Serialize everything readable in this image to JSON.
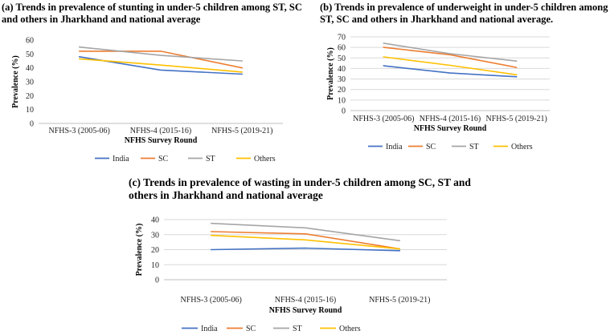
{
  "chart_data": [
    {
      "id": "a",
      "type": "line",
      "title": "(a) Trends in prevalence of stunting in under-5 children among ST, SC and others in Jharkhand and national average",
      "categories": [
        "NFHS-3 (2005-06)",
        "NFHS-4 (2015-16)",
        "NFHS-5 (2019-21)"
      ],
      "xlabel": "NFHS Survey Round",
      "ylabel": "Prevalence (%)",
      "ylim": [
        0,
        60
      ],
      "yticks": [
        0,
        10,
        20,
        30,
        40,
        50,
        60
      ],
      "grid": false,
      "legend": "bottom",
      "series": [
        {
          "name": "India",
          "color": "#4472C4",
          "values": [
            48,
            38.4,
            35.5
          ]
        },
        {
          "name": "SC",
          "color": "#ED7D31",
          "values": [
            52,
            52,
            40
          ]
        },
        {
          "name": "ST",
          "color": "#A5A5A5",
          "values": [
            55,
            49,
            45
          ]
        },
        {
          "name": "Others",
          "color": "#FFC000",
          "values": [
            46.5,
            42,
            37
          ]
        }
      ]
    },
    {
      "id": "b",
      "type": "line",
      "title": "(b) Trends in prevalence of underweight in under-5 children among ST, SC and others in Jharkhand and national average.",
      "categories": [
        "NFHS-3 (2005-06)",
        "NFHS-4 (2015-16)",
        "NFHS-5 (2019-21)"
      ],
      "xlabel": "NFHS Survey Round",
      "ylabel": "Prevalence (%)",
      "ylim": [
        0,
        70
      ],
      "yticks": [
        0,
        10,
        20,
        30,
        40,
        50,
        60,
        70
      ],
      "grid": true,
      "legend": "bottom",
      "series": [
        {
          "name": "India",
          "color": "#4472C4",
          "values": [
            42.5,
            35.7,
            32.1
          ]
        },
        {
          "name": "SC",
          "color": "#ED7D31",
          "values": [
            60,
            53,
            41
          ]
        },
        {
          "name": "ST",
          "color": "#A5A5A5",
          "values": [
            64,
            54,
            47
          ]
        },
        {
          "name": "Others",
          "color": "#FFC000",
          "values": [
            51,
            43,
            34
          ]
        }
      ]
    },
    {
      "id": "c",
      "type": "line",
      "title": "(c) Trends in prevalence of wasting in under-5 children among SC, ST and others in Jharkhand and national average",
      "categories": [
        "NFHS-3 (2005-06)",
        "NFHS-4 (2015-16)",
        "NFHS-5 (2019-21)"
      ],
      "xlabel": "NFHS Survey Round",
      "ylabel": "Prevalence (%)",
      "ylim": [
        0,
        40
      ],
      "yticks": [
        0,
        10,
        20,
        30,
        40
      ],
      "grid": true,
      "legend": "bottom",
      "series": [
        {
          "name": "India",
          "color": "#4472C4",
          "values": [
            20,
            21,
            19.3
          ]
        },
        {
          "name": "SC",
          "color": "#ED7D31",
          "values": [
            32,
            30.5,
            20.5
          ]
        },
        {
          "name": "ST",
          "color": "#A5A5A5",
          "values": [
            37.5,
            34.5,
            26
          ]
        },
        {
          "name": "Others",
          "color": "#FFC000",
          "values": [
            29.5,
            26.5,
            20.5
          ]
        }
      ]
    }
  ]
}
